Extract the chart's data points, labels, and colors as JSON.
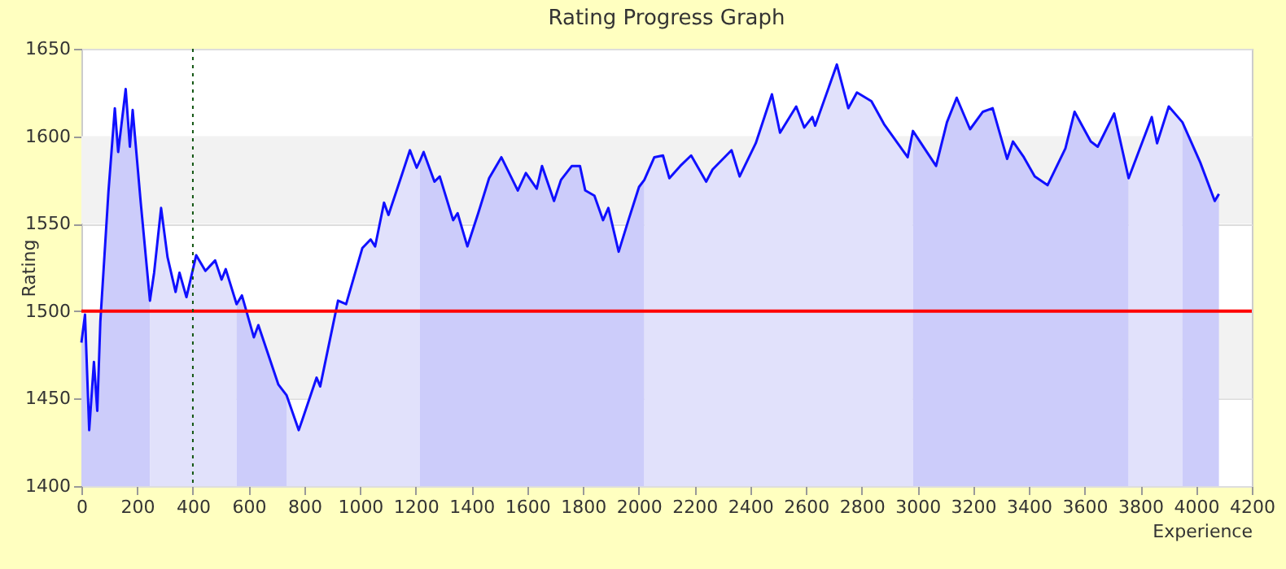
{
  "chart_data": {
    "type": "area",
    "title": "Rating Progress Graph",
    "xlabel": "Experience",
    "ylabel": "Rating",
    "xlim": [
      0,
      4200
    ],
    "ylim": [
      1400,
      1650
    ],
    "xticks": [
      0,
      200,
      400,
      600,
      800,
      1000,
      1200,
      1400,
      1600,
      1800,
      2000,
      2200,
      2400,
      2600,
      2800,
      3000,
      3200,
      3400,
      3600,
      3800,
      4000,
      4200
    ],
    "yticks": [
      1400,
      1450,
      1500,
      1550,
      1600,
      1650
    ],
    "grid": "y",
    "bands": [
      {
        "axis": "y",
        "from": 1450,
        "to": 1500,
        "color": "#f2f2f2"
      },
      {
        "axis": "y",
        "from": 1550,
        "to": 1600,
        "color": "#f2f2f2"
      }
    ],
    "series": [
      {
        "color": "#ccccfa",
        "x": [
          0,
          13,
          28,
          45,
          57,
          68,
          97,
          120,
          132,
          159,
          174,
          184,
          213,
          246
        ],
        "values": [
          1482,
          1498,
          1432,
          1471,
          1443,
          1494,
          1568,
          1616,
          1591,
          1627,
          1594,
          1615,
          1562,
          1506
        ]
      },
      {
        "color": "#e1e1fb",
        "x": [
          246,
          261,
          286,
          309,
          338,
          352,
          377,
          412,
          445,
          480,
          503,
          518,
          557
        ],
        "values": [
          1506,
          1522,
          1559,
          1531,
          1511,
          1522,
          1508,
          1532,
          1523,
          1529,
          1518,
          1524,
          1504
        ]
      },
      {
        "color": "#ccccfa",
        "x": [
          557,
          576,
          619,
          635,
          707,
          736
        ],
        "values": [
          1504,
          1509,
          1485,
          1492,
          1458,
          1452
        ]
      },
      {
        "color": "#e1e1fb",
        "x": [
          736,
          780,
          793,
          844,
          857,
          921,
          950,
          1008,
          1038,
          1054,
          1086,
          1102,
          1150,
          1179,
          1203,
          1215
        ],
        "values": [
          1452,
          1432,
          1438,
          1462,
          1457,
          1506,
          1504,
          1536,
          1541,
          1537,
          1562,
          1555,
          1578,
          1592,
          1582,
          1586
        ]
      },
      {
        "color": "#ccccfa",
        "x": [
          1215,
          1228,
          1267,
          1286,
          1334,
          1350,
          1385,
          1424,
          1463,
          1507,
          1566,
          1595,
          1634,
          1653,
          1696,
          1721,
          1760,
          1789,
          1808,
          1841,
          1872,
          1891,
          1928,
          1963,
          2001,
          2020
        ],
        "values": [
          1586,
          1591,
          1574,
          1577,
          1552,
          1556,
          1537,
          1556,
          1576,
          1588,
          1569,
          1579,
          1570,
          1583,
          1563,
          1575,
          1583,
          1583,
          1569,
          1566,
          1552,
          1559,
          1534,
          1552,
          1571,
          1575
        ]
      },
      {
        "color": "#e1e1fb",
        "x": [
          2020,
          2056,
          2087,
          2110,
          2149,
          2188,
          2242,
          2265,
          2333,
          2362,
          2420,
          2478,
          2507,
          2565,
          2594,
          2623,
          2633,
          2711,
          2752,
          2783,
          2835,
          2880,
          2965,
          2984
        ],
        "values": [
          1575,
          1588,
          1589,
          1576,
          1583,
          1589,
          1574,
          1581,
          1592,
          1577,
          1596,
          1624,
          1602,
          1617,
          1605,
          1611,
          1606,
          1641,
          1616,
          1625,
          1620,
          1607,
          1588,
          1603
        ]
      },
      {
        "color": "#ccccfa",
        "x": [
          2984,
          3067,
          3106,
          3141,
          3189,
          3235,
          3270,
          3322,
          3343,
          3382,
          3421,
          3467,
          3531,
          3564,
          3622,
          3647,
          3706,
          3758
        ],
        "values": [
          1603,
          1583,
          1608,
          1622,
          1604,
          1614,
          1616,
          1587,
          1597,
          1588,
          1577,
          1572,
          1593,
          1614,
          1597,
          1594,
          1613,
          1576
        ]
      },
      {
        "color": "#e1e1fb",
        "x": [
          3758,
          3841,
          3860,
          3902,
          3951
        ],
        "values": [
          1576,
          1611,
          1596,
          1617,
          1608
        ]
      },
      {
        "color": "#ccccfa",
        "x": [
          3951,
          4015,
          4067,
          4082
        ],
        "values": [
          1608,
          1585,
          1563,
          1567
        ]
      },
      {
        "type": "line",
        "color": "#1010ff",
        "x": [
          0,
          13,
          28,
          45,
          57,
          68,
          97,
          120,
          132,
          159,
          174,
          184,
          213,
          246,
          261,
          286,
          309,
          338,
          352,
          377,
          412,
          445,
          480,
          503,
          518,
          557,
          576,
          619,
          635,
          707,
          736,
          780,
          793,
          844,
          857,
          921,
          950,
          1008,
          1038,
          1054,
          1086,
          1102,
          1150,
          1179,
          1203,
          1215,
          1228,
          1267,
          1286,
          1334,
          1350,
          1385,
          1424,
          1463,
          1507,
          1566,
          1595,
          1634,
          1653,
          1696,
          1721,
          1760,
          1789,
          1808,
          1841,
          1872,
          1891,
          1928,
          1963,
          2001,
          2020,
          2056,
          2087,
          2110,
          2149,
          2188,
          2242,
          2265,
          2333,
          2362,
          2420,
          2478,
          2507,
          2565,
          2594,
          2623,
          2633,
          2711,
          2752,
          2783,
          2835,
          2880,
          2965,
          2984,
          3067,
          3106,
          3141,
          3189,
          3235,
          3270,
          3322,
          3343,
          3382,
          3421,
          3467,
          3531,
          3564,
          3622,
          3647,
          3706,
          3758,
          3841,
          3860,
          3902,
          3951,
          4015,
          4067,
          4082
        ],
        "values": [
          1482,
          1498,
          1432,
          1471,
          1443,
          1494,
          1568,
          1616,
          1591,
          1627,
          1594,
          1615,
          1562,
          1506,
          1522,
          1559,
          1531,
          1511,
          1522,
          1508,
          1532,
          1523,
          1529,
          1518,
          1524,
          1504,
          1509,
          1485,
          1492,
          1458,
          1452,
          1432,
          1438,
          1462,
          1457,
          1506,
          1504,
          1536,
          1541,
          1537,
          1562,
          1555,
          1578,
          1592,
          1582,
          1586,
          1591,
          1574,
          1577,
          1552,
          1556,
          1537,
          1556,
          1576,
          1588,
          1569,
          1579,
          1570,
          1583,
          1563,
          1575,
          1583,
          1583,
          1569,
          1566,
          1552,
          1559,
          1534,
          1552,
          1571,
          1575,
          1588,
          1589,
          1576,
          1583,
          1589,
          1574,
          1581,
          1592,
          1577,
          1596,
          1624,
          1602,
          1617,
          1605,
          1611,
          1606,
          1641,
          1616,
          1625,
          1620,
          1607,
          1588,
          1603,
          1583,
          1608,
          1622,
          1604,
          1614,
          1616,
          1587,
          1597,
          1588,
          1577,
          1572,
          1593,
          1614,
          1597,
          1594,
          1613,
          1576,
          1611,
          1596,
          1617,
          1608,
          1585,
          1563,
          1567
        ]
      }
    ],
    "ref_lines": [
      {
        "axis": "y",
        "value": 1500,
        "color": "#ff0000",
        "line_style": "solid"
      },
      {
        "axis": "x",
        "value": 400,
        "color": "#115511",
        "line_style": "dotted"
      }
    ]
  }
}
